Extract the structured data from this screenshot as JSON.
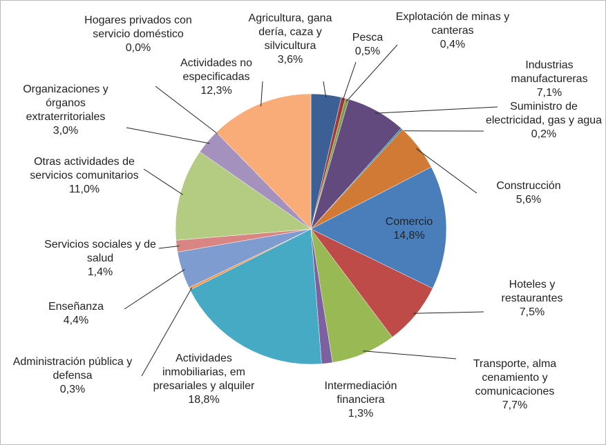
{
  "chart_data": {
    "type": "pie",
    "categories": [
      "Agricultura, gana dería, caza y silvicultura",
      "Pesca",
      "Explotación de minas y canteras",
      "Industrias manufactureras",
      "Suministro de electricidad, gas y agua",
      "Construcción",
      "Comercio",
      "Hoteles y restaurantes",
      "Transporte, alma cenamiento y comunicaciones",
      "Intermediación financiera",
      "Actividades inmobiliarias, em presariales y alquiler",
      "Administración pública y defensa",
      "Enseñanza",
      "Servicios sociales y de salud",
      "Otras actividades de servicios comunitarios",
      "Organizaciones y órganos extraterritoriales",
      "Hogares privados con servicio doméstico",
      "Actividades no especificadas"
    ],
    "values": [
      3.6,
      0.5,
      0.4,
      7.1,
      0.2,
      5.6,
      14.8,
      7.5,
      7.7,
      1.3,
      18.8,
      0.3,
      4.4,
      1.4,
      11.0,
      3.0,
      0.0,
      12.3
    ],
    "value_labels": [
      "3,6%",
      "0,5%",
      "0,4%",
      "7,1%",
      "0,2%",
      "5,6%",
      "14,8%",
      "7,5%",
      "7,7%",
      "1,3%",
      "18,8%",
      "0,3%",
      "4,4%",
      "1,4%",
      "11,0%",
      "3,0%",
      "0,0%",
      "12,3%"
    ],
    "colors": [
      "#3c6096",
      "#9e3b38",
      "#7f9a48",
      "#624a7e",
      "#2f8fa8",
      "#d07a35",
      "#4a7ebb",
      "#be4b48",
      "#98b954",
      "#7d60a0",
      "#46aac5",
      "#f79646",
      "#7f9cd0",
      "#d98583",
      "#b3cc82",
      "#a491bd",
      "#8ec8dc",
      "#f9ab78"
    ]
  }
}
